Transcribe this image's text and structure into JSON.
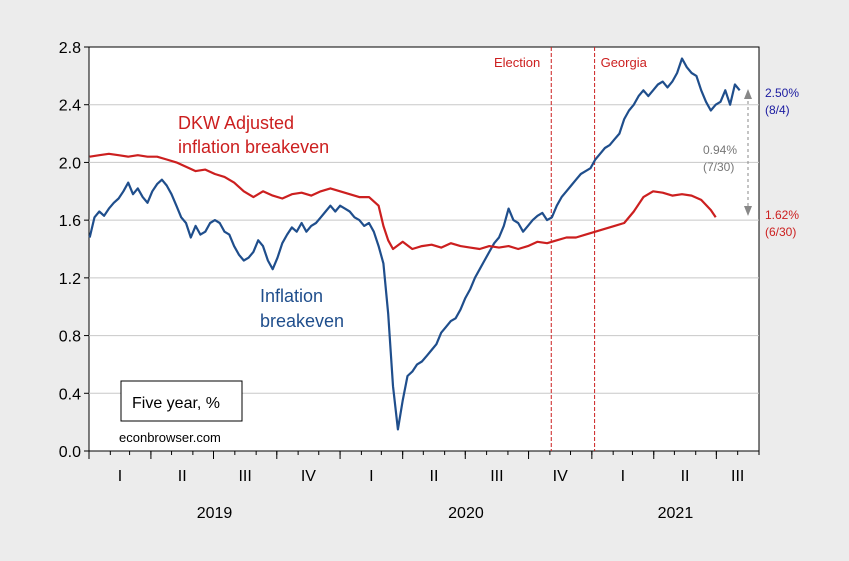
{
  "chart_data": {
    "type": "line",
    "ylim": [
      0,
      2.8
    ],
    "yticks": [
      0.0,
      0.4,
      0.8,
      1.2,
      1.6,
      2.0,
      2.4,
      2.8
    ],
    "ytick_labels": [
      "0.0",
      "0.4",
      "0.8",
      "1.2",
      "1.6",
      "2.0",
      "2.4",
      "2.8"
    ],
    "grid": true,
    "quarter_labels": [
      {
        "label": "I",
        "year": 2019,
        "q": 1
      },
      {
        "label": "II",
        "year": 2019,
        "q": 2
      },
      {
        "label": "III",
        "year": 2019,
        "q": 3
      },
      {
        "label": "IV",
        "year": 2019,
        "q": 4
      },
      {
        "label": "I",
        "year": 2020,
        "q": 1
      },
      {
        "label": "II",
        "year": 2020,
        "q": 2
      },
      {
        "label": "III",
        "year": 2020,
        "q": 3
      },
      {
        "label": "IV",
        "year": 2020,
        "q": 4
      },
      {
        "label": "I",
        "year": 2021,
        "q": 1
      },
      {
        "label": "II",
        "year": 2021,
        "q": 2
      },
      {
        "label": "III",
        "year": 2021,
        "q": 3
      }
    ],
    "year_labels": [
      "2019",
      "2020",
      "2021"
    ],
    "events": [
      {
        "label": "Election",
        "date": "2020-11-03",
        "color": "#cc1f1f"
      },
      {
        "label": "Georgia",
        "date": "2021-01-05",
        "color": "#cc1f1f"
      }
    ],
    "series": [
      {
        "name": "Inflation breakeven",
        "color": "#1f4e8c",
        "points": [
          [
            "2019-01-02",
            1.48
          ],
          [
            "2019-01-09",
            1.62
          ],
          [
            "2019-01-16",
            1.66
          ],
          [
            "2019-01-23",
            1.63
          ],
          [
            "2019-01-30",
            1.68
          ],
          [
            "2019-02-06",
            1.72
          ],
          [
            "2019-02-13",
            1.75
          ],
          [
            "2019-02-20",
            1.8
          ],
          [
            "2019-02-27",
            1.86
          ],
          [
            "2019-03-06",
            1.78
          ],
          [
            "2019-03-13",
            1.82
          ],
          [
            "2019-03-20",
            1.76
          ],
          [
            "2019-03-27",
            1.72
          ],
          [
            "2019-04-03",
            1.8
          ],
          [
            "2019-04-10",
            1.85
          ],
          [
            "2019-04-17",
            1.88
          ],
          [
            "2019-04-24",
            1.84
          ],
          [
            "2019-05-01",
            1.78
          ],
          [
            "2019-05-08",
            1.7
          ],
          [
            "2019-05-15",
            1.62
          ],
          [
            "2019-05-22",
            1.58
          ],
          [
            "2019-05-29",
            1.48
          ],
          [
            "2019-06-05",
            1.56
          ],
          [
            "2019-06-12",
            1.5
          ],
          [
            "2019-06-19",
            1.52
          ],
          [
            "2019-06-26",
            1.58
          ],
          [
            "2019-07-03",
            1.6
          ],
          [
            "2019-07-10",
            1.58
          ],
          [
            "2019-07-17",
            1.52
          ],
          [
            "2019-07-24",
            1.5
          ],
          [
            "2019-07-31",
            1.42
          ],
          [
            "2019-08-07",
            1.36
          ],
          [
            "2019-08-14",
            1.32
          ],
          [
            "2019-08-21",
            1.34
          ],
          [
            "2019-08-28",
            1.38
          ],
          [
            "2019-09-04",
            1.46
          ],
          [
            "2019-09-11",
            1.42
          ],
          [
            "2019-09-18",
            1.32
          ],
          [
            "2019-09-25",
            1.26
          ],
          [
            "2019-10-02",
            1.34
          ],
          [
            "2019-10-09",
            1.44
          ],
          [
            "2019-10-16",
            1.5
          ],
          [
            "2019-10-23",
            1.55
          ],
          [
            "2019-10-30",
            1.52
          ],
          [
            "2019-11-06",
            1.58
          ],
          [
            "2019-11-13",
            1.52
          ],
          [
            "2019-11-20",
            1.56
          ],
          [
            "2019-11-27",
            1.58
          ],
          [
            "2019-12-04",
            1.62
          ],
          [
            "2019-12-11",
            1.66
          ],
          [
            "2019-12-18",
            1.7
          ],
          [
            "2019-12-25",
            1.66
          ],
          [
            "2020-01-01",
            1.7
          ],
          [
            "2020-01-08",
            1.68
          ],
          [
            "2020-01-15",
            1.66
          ],
          [
            "2020-01-22",
            1.62
          ],
          [
            "2020-01-29",
            1.6
          ],
          [
            "2020-02-05",
            1.56
          ],
          [
            "2020-02-12",
            1.58
          ],
          [
            "2020-02-19",
            1.52
          ],
          [
            "2020-02-26",
            1.42
          ],
          [
            "2020-03-04",
            1.3
          ],
          [
            "2020-03-11",
            0.95
          ],
          [
            "2020-03-18",
            0.45
          ],
          [
            "2020-03-25",
            0.15
          ],
          [
            "2020-04-01",
            0.35
          ],
          [
            "2020-04-08",
            0.52
          ],
          [
            "2020-04-15",
            0.55
          ],
          [
            "2020-04-22",
            0.6
          ],
          [
            "2020-04-29",
            0.62
          ],
          [
            "2020-05-06",
            0.66
          ],
          [
            "2020-05-13",
            0.7
          ],
          [
            "2020-05-20",
            0.74
          ],
          [
            "2020-05-27",
            0.82
          ],
          [
            "2020-06-03",
            0.86
          ],
          [
            "2020-06-10",
            0.9
          ],
          [
            "2020-06-17",
            0.92
          ],
          [
            "2020-06-24",
            0.98
          ],
          [
            "2020-07-01",
            1.06
          ],
          [
            "2020-07-08",
            1.12
          ],
          [
            "2020-07-15",
            1.2
          ],
          [
            "2020-07-22",
            1.26
          ],
          [
            "2020-07-29",
            1.32
          ],
          [
            "2020-08-05",
            1.38
          ],
          [
            "2020-08-12",
            1.44
          ],
          [
            "2020-08-19",
            1.48
          ],
          [
            "2020-08-26",
            1.56
          ],
          [
            "2020-09-02",
            1.68
          ],
          [
            "2020-09-09",
            1.6
          ],
          [
            "2020-09-16",
            1.58
          ],
          [
            "2020-09-23",
            1.52
          ],
          [
            "2020-09-30",
            1.56
          ],
          [
            "2020-10-07",
            1.6
          ],
          [
            "2020-10-14",
            1.63
          ],
          [
            "2020-10-21",
            1.65
          ],
          [
            "2020-10-28",
            1.6
          ],
          [
            "2020-11-04",
            1.62
          ],
          [
            "2020-11-11",
            1.7
          ],
          [
            "2020-11-18",
            1.76
          ],
          [
            "2020-11-25",
            1.8
          ],
          [
            "2020-12-02",
            1.84
          ],
          [
            "2020-12-09",
            1.88
          ],
          [
            "2020-12-16",
            1.92
          ],
          [
            "2020-12-23",
            1.94
          ],
          [
            "2020-12-30",
            1.96
          ],
          [
            "2021-01-06",
            2.02
          ],
          [
            "2021-01-13",
            2.06
          ],
          [
            "2021-01-20",
            2.1
          ],
          [
            "2021-01-27",
            2.12
          ],
          [
            "2021-02-03",
            2.16
          ],
          [
            "2021-02-10",
            2.2
          ],
          [
            "2021-02-17",
            2.3
          ],
          [
            "2021-02-24",
            2.36
          ],
          [
            "2021-03-03",
            2.4
          ],
          [
            "2021-03-10",
            2.46
          ],
          [
            "2021-03-17",
            2.5
          ],
          [
            "2021-03-24",
            2.46
          ],
          [
            "2021-03-31",
            2.5
          ],
          [
            "2021-04-07",
            2.54
          ],
          [
            "2021-04-14",
            2.56
          ],
          [
            "2021-04-21",
            2.52
          ],
          [
            "2021-04-28",
            2.56
          ],
          [
            "2021-05-05",
            2.62
          ],
          [
            "2021-05-12",
            2.72
          ],
          [
            "2021-05-19",
            2.66
          ],
          [
            "2021-05-26",
            2.62
          ],
          [
            "2021-06-02",
            2.6
          ],
          [
            "2021-06-09",
            2.5
          ],
          [
            "2021-06-16",
            2.42
          ],
          [
            "2021-06-23",
            2.36
          ],
          [
            "2021-06-30",
            2.4
          ],
          [
            "2021-07-07",
            2.42
          ],
          [
            "2021-07-14",
            2.5
          ],
          [
            "2021-07-21",
            2.4
          ],
          [
            "2021-07-28",
            2.54
          ],
          [
            "2021-08-04",
            2.5
          ]
        ],
        "label_lines": [
          "Inflation",
          "breakeven"
        ],
        "end_value_label": "2.50%",
        "end_date_label": "(8/4)"
      },
      {
        "name": "DKW Adjusted inflation breakeven",
        "color": "#cc1f1f",
        "points": [
          [
            "2019-01-02",
            2.04
          ],
          [
            "2019-01-16",
            2.05
          ],
          [
            "2019-01-30",
            2.06
          ],
          [
            "2019-02-13",
            2.05
          ],
          [
            "2019-02-27",
            2.04
          ],
          [
            "2019-03-13",
            2.05
          ],
          [
            "2019-03-27",
            2.04
          ],
          [
            "2019-04-10",
            2.04
          ],
          [
            "2019-04-24",
            2.02
          ],
          [
            "2019-05-08",
            2.0
          ],
          [
            "2019-05-22",
            1.97
          ],
          [
            "2019-06-05",
            1.94
          ],
          [
            "2019-06-19",
            1.95
          ],
          [
            "2019-07-03",
            1.92
          ],
          [
            "2019-07-17",
            1.9
          ],
          [
            "2019-07-31",
            1.86
          ],
          [
            "2019-08-14",
            1.8
          ],
          [
            "2019-08-28",
            1.76
          ],
          [
            "2019-09-11",
            1.8
          ],
          [
            "2019-09-25",
            1.77
          ],
          [
            "2019-10-09",
            1.75
          ],
          [
            "2019-10-23",
            1.78
          ],
          [
            "2019-11-06",
            1.79
          ],
          [
            "2019-11-20",
            1.77
          ],
          [
            "2019-12-04",
            1.8
          ],
          [
            "2019-12-18",
            1.82
          ],
          [
            "2020-01-01",
            1.8
          ],
          [
            "2020-01-15",
            1.78
          ],
          [
            "2020-01-29",
            1.76
          ],
          [
            "2020-02-12",
            1.76
          ],
          [
            "2020-02-26",
            1.7
          ],
          [
            "2020-03-04",
            1.56
          ],
          [
            "2020-03-11",
            1.46
          ],
          [
            "2020-03-18",
            1.4
          ],
          [
            "2020-04-01",
            1.45
          ],
          [
            "2020-04-15",
            1.4
          ],
          [
            "2020-04-29",
            1.42
          ],
          [
            "2020-05-13",
            1.43
          ],
          [
            "2020-05-27",
            1.41
          ],
          [
            "2020-06-10",
            1.44
          ],
          [
            "2020-06-24",
            1.42
          ],
          [
            "2020-07-08",
            1.41
          ],
          [
            "2020-07-22",
            1.4
          ],
          [
            "2020-08-05",
            1.42
          ],
          [
            "2020-08-19",
            1.41
          ],
          [
            "2020-09-02",
            1.42
          ],
          [
            "2020-09-16",
            1.4
          ],
          [
            "2020-09-30",
            1.42
          ],
          [
            "2020-10-14",
            1.45
          ],
          [
            "2020-10-28",
            1.44
          ],
          [
            "2020-11-11",
            1.46
          ],
          [
            "2020-11-25",
            1.48
          ],
          [
            "2020-12-09",
            1.48
          ],
          [
            "2020-12-23",
            1.5
          ],
          [
            "2021-01-06",
            1.52
          ],
          [
            "2021-01-20",
            1.54
          ],
          [
            "2021-02-03",
            1.56
          ],
          [
            "2021-02-17",
            1.58
          ],
          [
            "2021-03-03",
            1.66
          ],
          [
            "2021-03-17",
            1.76
          ],
          [
            "2021-03-31",
            1.8
          ],
          [
            "2021-04-14",
            1.79
          ],
          [
            "2021-04-28",
            1.77
          ],
          [
            "2021-05-12",
            1.78
          ],
          [
            "2021-05-26",
            1.77
          ],
          [
            "2021-06-09",
            1.74
          ],
          [
            "2021-06-23",
            1.67
          ],
          [
            "2021-06-30",
            1.62
          ]
        ],
        "label_lines": [
          "DKW Adjusted",
          "inflation breakeven"
        ],
        "end_value_label": "1.62%",
        "end_date_label": "(6/30)"
      }
    ],
    "gap_annotation": {
      "value_label": "0.94%",
      "date_label": "(7/30)",
      "color": "#777777"
    },
    "box_label": "Five year, %",
    "source_label": "econbrowser.com"
  }
}
